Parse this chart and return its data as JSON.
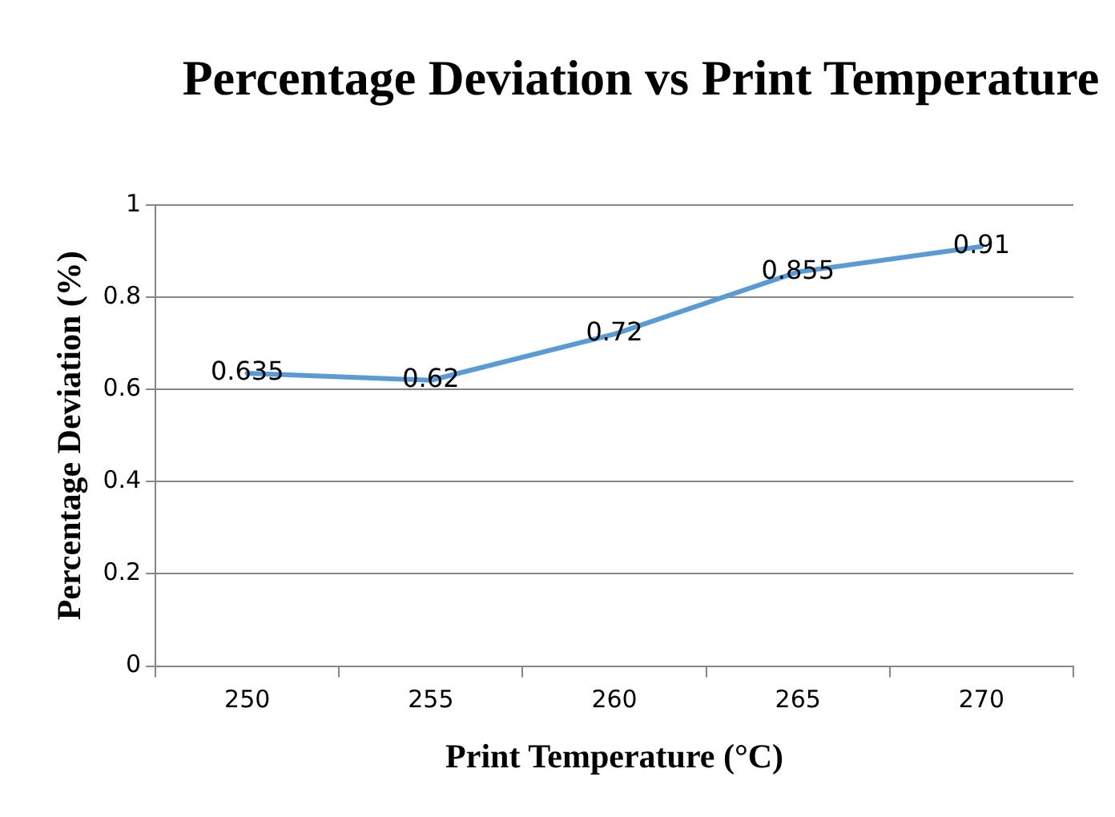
{
  "chart_data": {
    "type": "line",
    "title": "Percentage Deviation vs Print Temperature",
    "xlabel": "Print Temperature (°C)",
    "ylabel": "Percentage Deviation (%)",
    "categories": [
      "250",
      "255",
      "260",
      "265",
      "270"
    ],
    "series": [
      {
        "color": "#5b9bd5",
        "values": [
          0.635,
          0.62,
          0.72,
          0.855,
          0.91
        ]
      }
    ],
    "ylim": [
      0,
      1
    ],
    "yticks": [
      0,
      0.2,
      0.4,
      0.6,
      0.8,
      1
    ],
    "grid": "y",
    "legend": false,
    "marker": "none",
    "line_style": "solid",
    "data_labels": true
  }
}
